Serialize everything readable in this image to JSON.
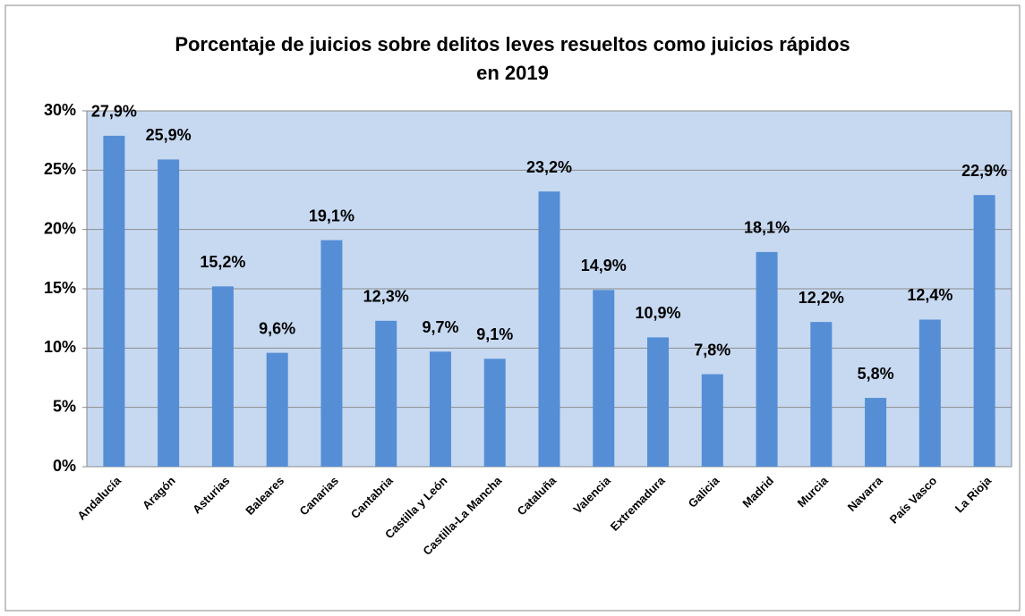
{
  "chart_data": {
    "type": "bar",
    "title": "Porcentaje de juicios sobre delitos leves  resueltos como juicios rápidos\nen 2019",
    "categories": [
      "Andalucía",
      "Aragón",
      "Asturias",
      "Baleares",
      "Canarias",
      "Cantabria",
      "Castilla y León",
      "Castilla-La Mancha",
      "Cataluña",
      "Valencia",
      "Extremadura",
      "Galicia",
      "Madrid",
      "Murcia",
      "Navarra",
      "País Vasco",
      "La Rioja"
    ],
    "values": [
      27.9,
      25.9,
      15.2,
      9.6,
      19.1,
      12.3,
      9.7,
      9.1,
      23.2,
      14.9,
      10.9,
      7.8,
      18.1,
      12.2,
      5.8,
      12.4,
      22.9
    ],
    "value_labels": [
      "27,9%",
      "25,9%",
      "15,2%",
      "9,6%",
      "19,1%",
      "12,3%",
      "9,7%",
      "9,1%",
      "23,2%",
      "14,9%",
      "10,9%",
      "7,8%",
      "18,1%",
      "12,2%",
      "5,8%",
      "12,4%",
      "22,9%"
    ],
    "color": "#558ed5",
    "ylim": [
      0,
      30
    ],
    "yticks": [
      {
        "value": 0,
        "label": "0%"
      },
      {
        "value": 5,
        "label": "5%"
      },
      {
        "value": 10,
        "label": "10%"
      },
      {
        "value": 15,
        "label": "15%"
      },
      {
        "value": 20,
        "label": "20%"
      },
      {
        "value": 25,
        "label": "25%"
      },
      {
        "value": 30,
        "label": "30%"
      }
    ],
    "grid": true
  }
}
